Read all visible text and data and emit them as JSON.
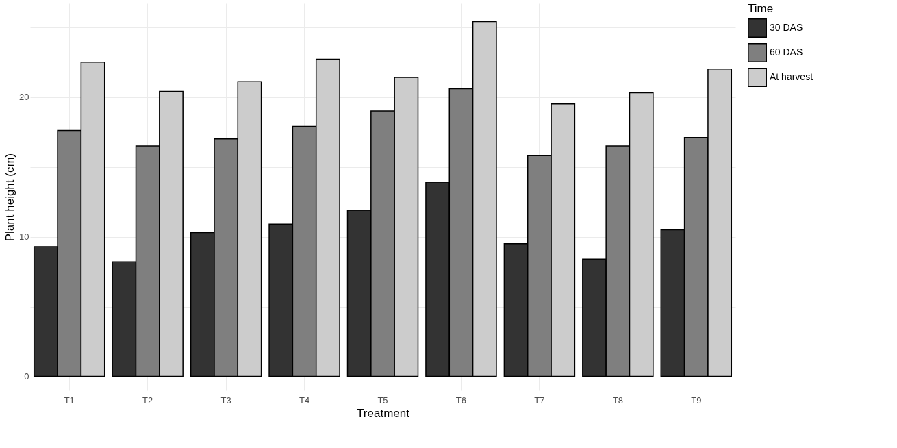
{
  "chart_data": {
    "type": "bar",
    "xlabel": "Treatment",
    "ylabel": "Plant height (cm)",
    "legend_title": "Time",
    "categories": [
      "T1",
      "T2",
      "T3",
      "T4",
      "T5",
      "T6",
      "T7",
      "T8",
      "T9"
    ],
    "series": [
      {
        "name": "30 DAS",
        "color": "#333333",
        "values": [
          9.3,
          8.2,
          10.3,
          10.9,
          11.9,
          13.9,
          9.5,
          8.4,
          10.5
        ]
      },
      {
        "name": "60 DAS",
        "color": "#7f7f7f",
        "values": [
          17.6,
          16.5,
          17.0,
          17.9,
          19.0,
          20.6,
          15.8,
          16.5,
          17.1
        ]
      },
      {
        "name": "At harvest",
        "color": "#cccccc",
        "values": [
          22.5,
          20.4,
          21.1,
          22.7,
          21.4,
          25.4,
          19.5,
          20.3,
          22.0
        ]
      }
    ],
    "ylim": [
      -1.0,
      26.7
    ],
    "yticks": [
      0,
      {
        "value": 5,
        "label": null
      },
      10,
      {
        "value": 15,
        "label": null
      },
      20,
      {
        "value": 25,
        "label": null
      }
    ],
    "grid": true,
    "legend": "right"
  }
}
